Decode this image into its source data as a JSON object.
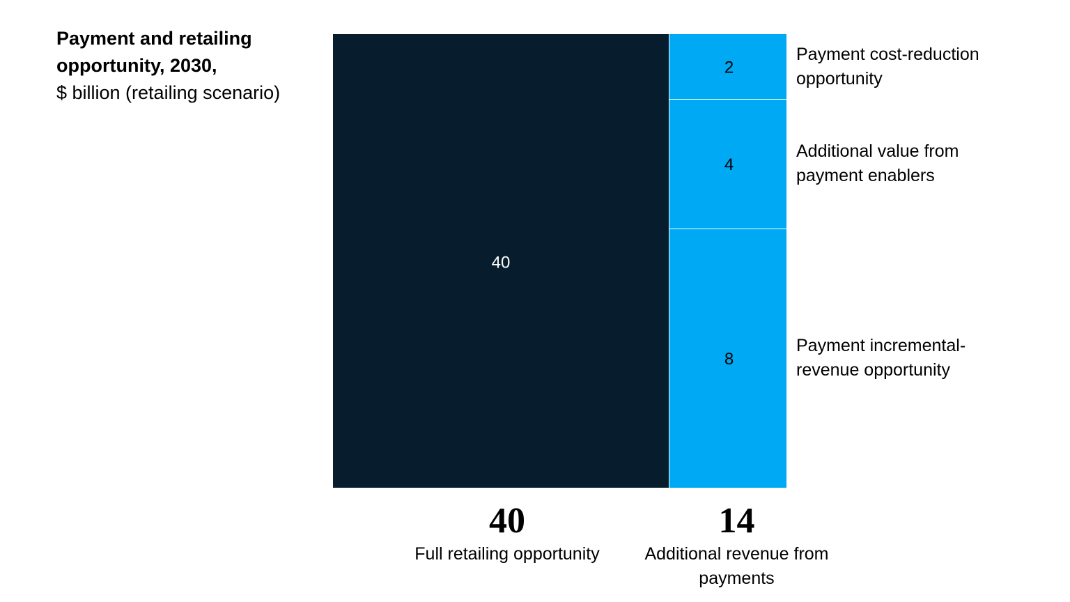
{
  "chart_data": {
    "type": "bar",
    "title": "Payment and retailing opportunity, 2030,",
    "subtitle": "$ billion (retailing scenario)",
    "colors": {
      "retailing": "#071d2e",
      "payments": "#00a9f4"
    },
    "bars": [
      {
        "total": "40",
        "label": "Full retailing opportunity",
        "segments": [
          {
            "value": 40,
            "display": "40",
            "label": ""
          }
        ]
      },
      {
        "total": "14",
        "label": "Additional revenue from payments",
        "segments": [
          {
            "value": 8,
            "display": "8",
            "label": "Payment incremental-revenue opportunity"
          },
          {
            "value": 4,
            "display": "4",
            "label": "Additional value from payment enablers"
          },
          {
            "value": 2,
            "display": "2",
            "label": "Payment cost-reduction opportunity"
          }
        ]
      }
    ]
  }
}
